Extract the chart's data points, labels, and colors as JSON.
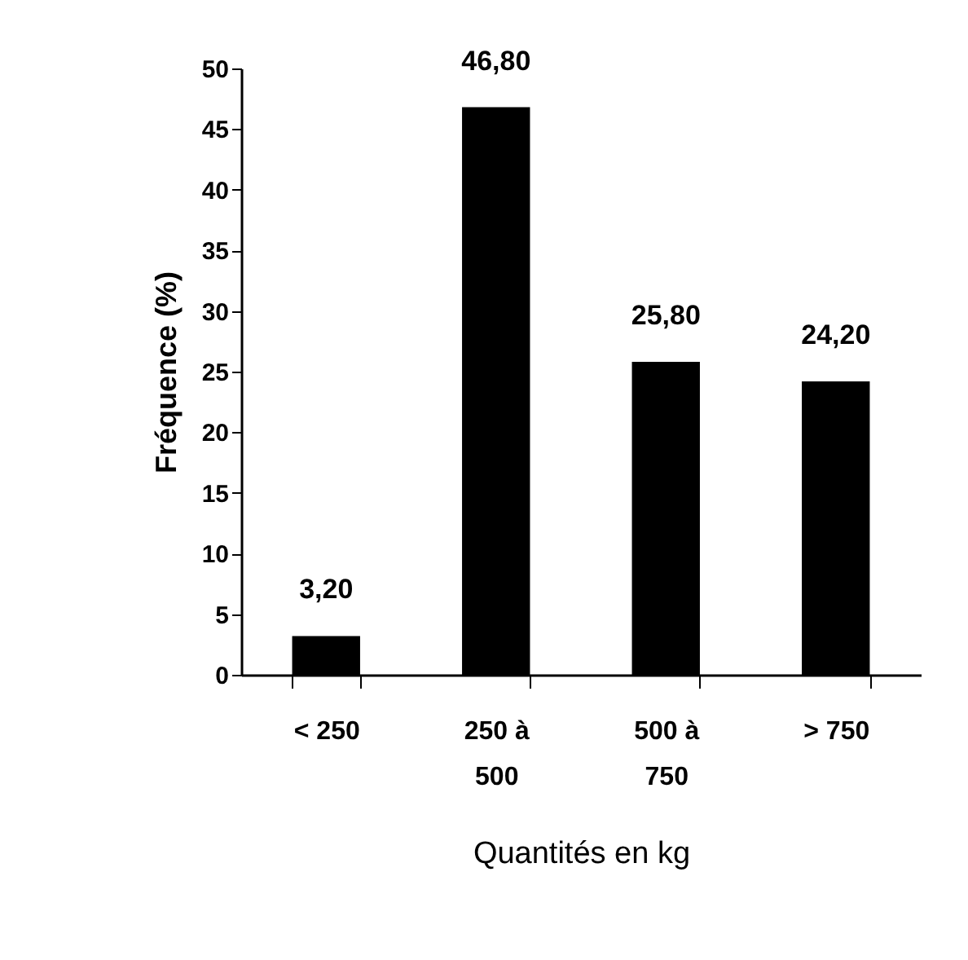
{
  "chart_data": {
    "type": "bar",
    "xlabel": "Quantités en kg",
    "ylabel": "Fréquence (%)",
    "categories": [
      "< 250",
      "250 à 500",
      "500 à 750",
      "> 750"
    ],
    "values": [
      3.2,
      46.8,
      25.8,
      24.2
    ],
    "value_labels": [
      "3,20",
      "46,80",
      "25,80",
      "24,20"
    ],
    "color": "#000000",
    "ylim": [
      0,
      50
    ],
    "yticks": [
      0,
      5,
      10,
      15,
      20,
      25,
      30,
      35,
      40,
      45,
      50
    ]
  }
}
